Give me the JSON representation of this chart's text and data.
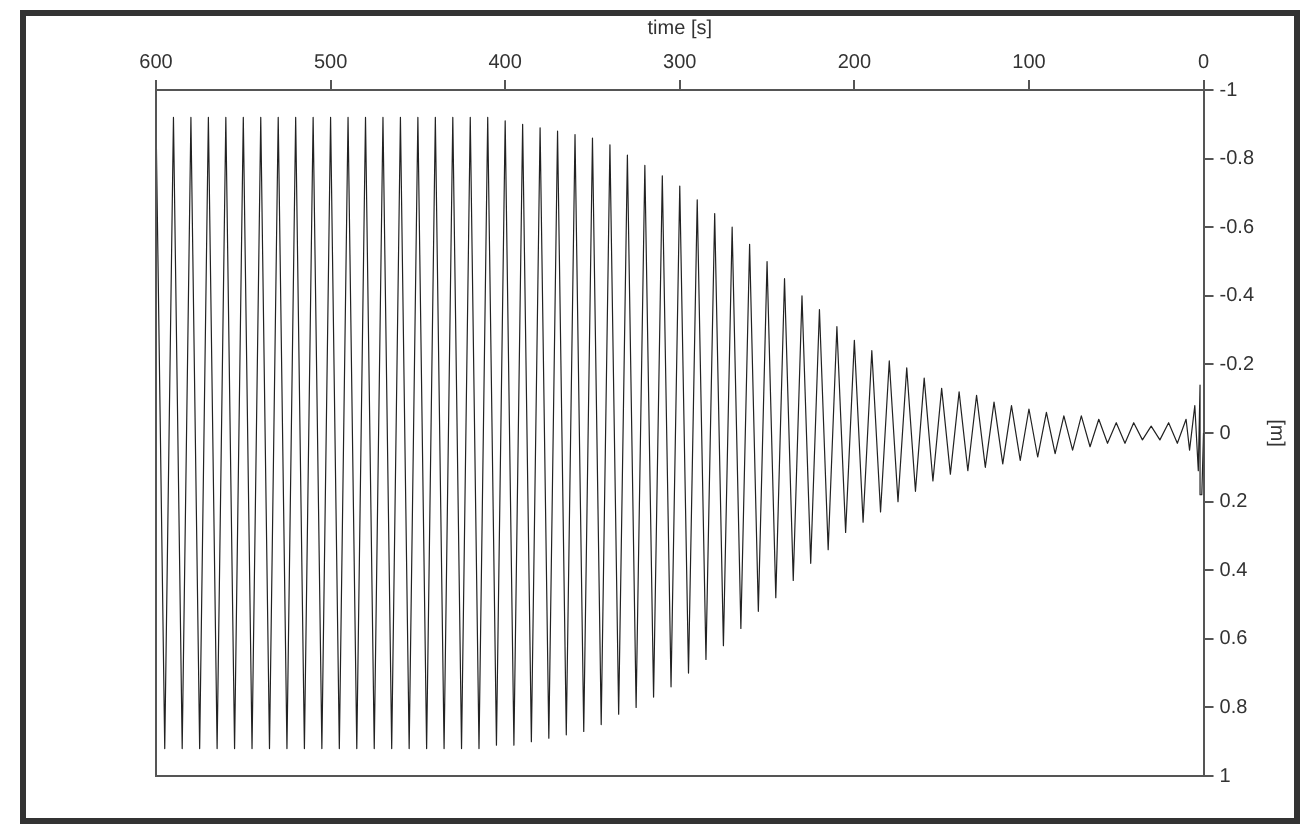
{
  "chart_data": {
    "type": "line",
    "xlabel": "time [s]",
    "ylabel": "[m]",
    "xlim": [
      600,
      0
    ],
    "xticks": [
      0,
      100,
      200,
      300,
      400,
      500,
      600
    ],
    "ylim": [
      1,
      -1
    ],
    "yticks": [
      -1,
      -0.8,
      -0.6,
      -0.4,
      -0.2,
      0,
      0.2,
      0.4,
      0.6,
      0.8,
      1
    ],
    "grid": false,
    "legend": false,
    "marker": "none",
    "line_style": "solid",
    "series": [
      {
        "color": "#222222",
        "x": [
          0,
          1,
          2,
          3,
          5,
          8,
          10,
          15,
          20,
          25,
          30,
          35,
          40,
          45,
          50,
          55,
          60,
          65,
          70,
          75,
          80,
          85,
          90,
          95,
          100,
          105,
          110,
          115,
          120,
          125,
          130,
          135,
          140,
          145,
          150,
          155,
          160,
          165,
          170,
          175,
          180,
          185,
          190,
          195,
          200,
          205,
          210,
          215,
          220,
          225,
          230,
          235,
          240,
          245,
          250,
          255,
          260,
          265,
          270,
          275,
          280,
          285,
          290,
          295,
          300,
          305,
          310,
          315,
          320,
          325,
          330,
          335,
          340,
          345,
          350,
          355,
          360,
          365,
          370,
          375,
          380,
          385,
          390,
          395,
          400,
          405,
          410,
          415,
          420,
          425,
          430,
          435,
          440,
          445,
          450,
          455,
          460,
          465,
          470,
          475,
          480,
          485,
          490,
          495,
          500,
          505,
          510,
          515,
          520,
          525,
          530,
          535,
          540,
          545,
          550,
          555,
          560,
          565,
          570,
          575,
          580,
          585,
          590,
          595,
          600
        ],
        "values": [
          0,
          0.18,
          -0.14,
          0.11,
          -0.08,
          0.05,
          -0.04,
          0.03,
          -0.03,
          0.02,
          -0.02,
          0.02,
          -0.03,
          0.03,
          -0.03,
          0.03,
          -0.04,
          0.04,
          -0.05,
          0.05,
          -0.05,
          0.06,
          -0.06,
          0.07,
          -0.07,
          0.08,
          -0.08,
          0.09,
          -0.09,
          0.1,
          -0.11,
          0.11,
          -0.12,
          0.12,
          -0.13,
          0.14,
          -0.16,
          0.17,
          -0.19,
          0.2,
          -0.21,
          0.23,
          -0.24,
          0.26,
          -0.27,
          0.29,
          -0.31,
          0.34,
          -0.36,
          0.38,
          -0.4,
          0.43,
          -0.45,
          0.48,
          -0.5,
          0.52,
          -0.55,
          0.57,
          -0.6,
          0.62,
          -0.64,
          0.66,
          -0.68,
          0.7,
          -0.72,
          0.74,
          -0.75,
          0.77,
          -0.78,
          0.8,
          -0.81,
          0.82,
          -0.84,
          0.85,
          -0.86,
          0.87,
          -0.87,
          0.88,
          -0.88,
          0.89,
          -0.89,
          0.9,
          -0.9,
          0.91,
          -0.91,
          0.91,
          -0.92,
          0.92,
          -0.92,
          0.92,
          -0.92,
          0.92,
          -0.92,
          0.92,
          -0.92,
          0.92,
          -0.92,
          0.92,
          -0.92,
          0.92,
          -0.92,
          0.92,
          -0.92,
          0.92,
          -0.92,
          0.92,
          -0.92,
          0.92,
          -0.92,
          0.92,
          -0.92,
          0.92,
          -0.92,
          0.92,
          -0.92,
          0.92,
          -0.92,
          0.92,
          -0.92,
          0.92,
          -0.92,
          0.92,
          -0.92,
          0.92,
          -0.92
        ]
      }
    ]
  }
}
